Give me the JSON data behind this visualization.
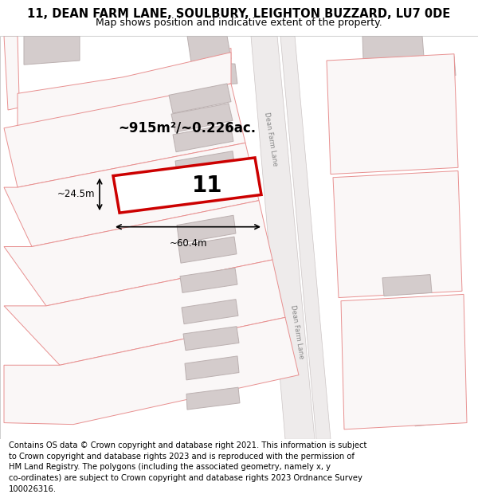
{
  "title_line1": "11, DEAN FARM LANE, SOULBURY, LEIGHTON BUZZARD, LU7 0DE",
  "title_line2": "Map shows position and indicative extent of the property.",
  "bg_color": "#ffffff",
  "map_bg": "#faf7f7",
  "building_fill": "#d4cccc",
  "building_edge": "#bbb0b0",
  "plot_line_color": "#e89090",
  "highlight_color": "#cc0000",
  "area_text": "~915m²/~0.226ac.",
  "width_text": "~60.4m",
  "height_text": "~24.5m",
  "number_text": "11",
  "road_label1": "Dean Farm Lane",
  "road_label2": "Dean Farm Lane",
  "title_fontsize": 10.5,
  "subtitle_fontsize": 9,
  "footer_fontsize": 7.2,
  "footer_lines": [
    "Contains OS data © Crown copyright and database right 2021. This information is subject",
    "to Crown copyright and database rights 2023 and is reproduced with the permission of",
    "HM Land Registry. The polygons (including the associated geometry, namely x, y",
    "co-ordinates) are subject to Crown copyright and database rights 2023 Ordnance Survey",
    "100026316."
  ]
}
